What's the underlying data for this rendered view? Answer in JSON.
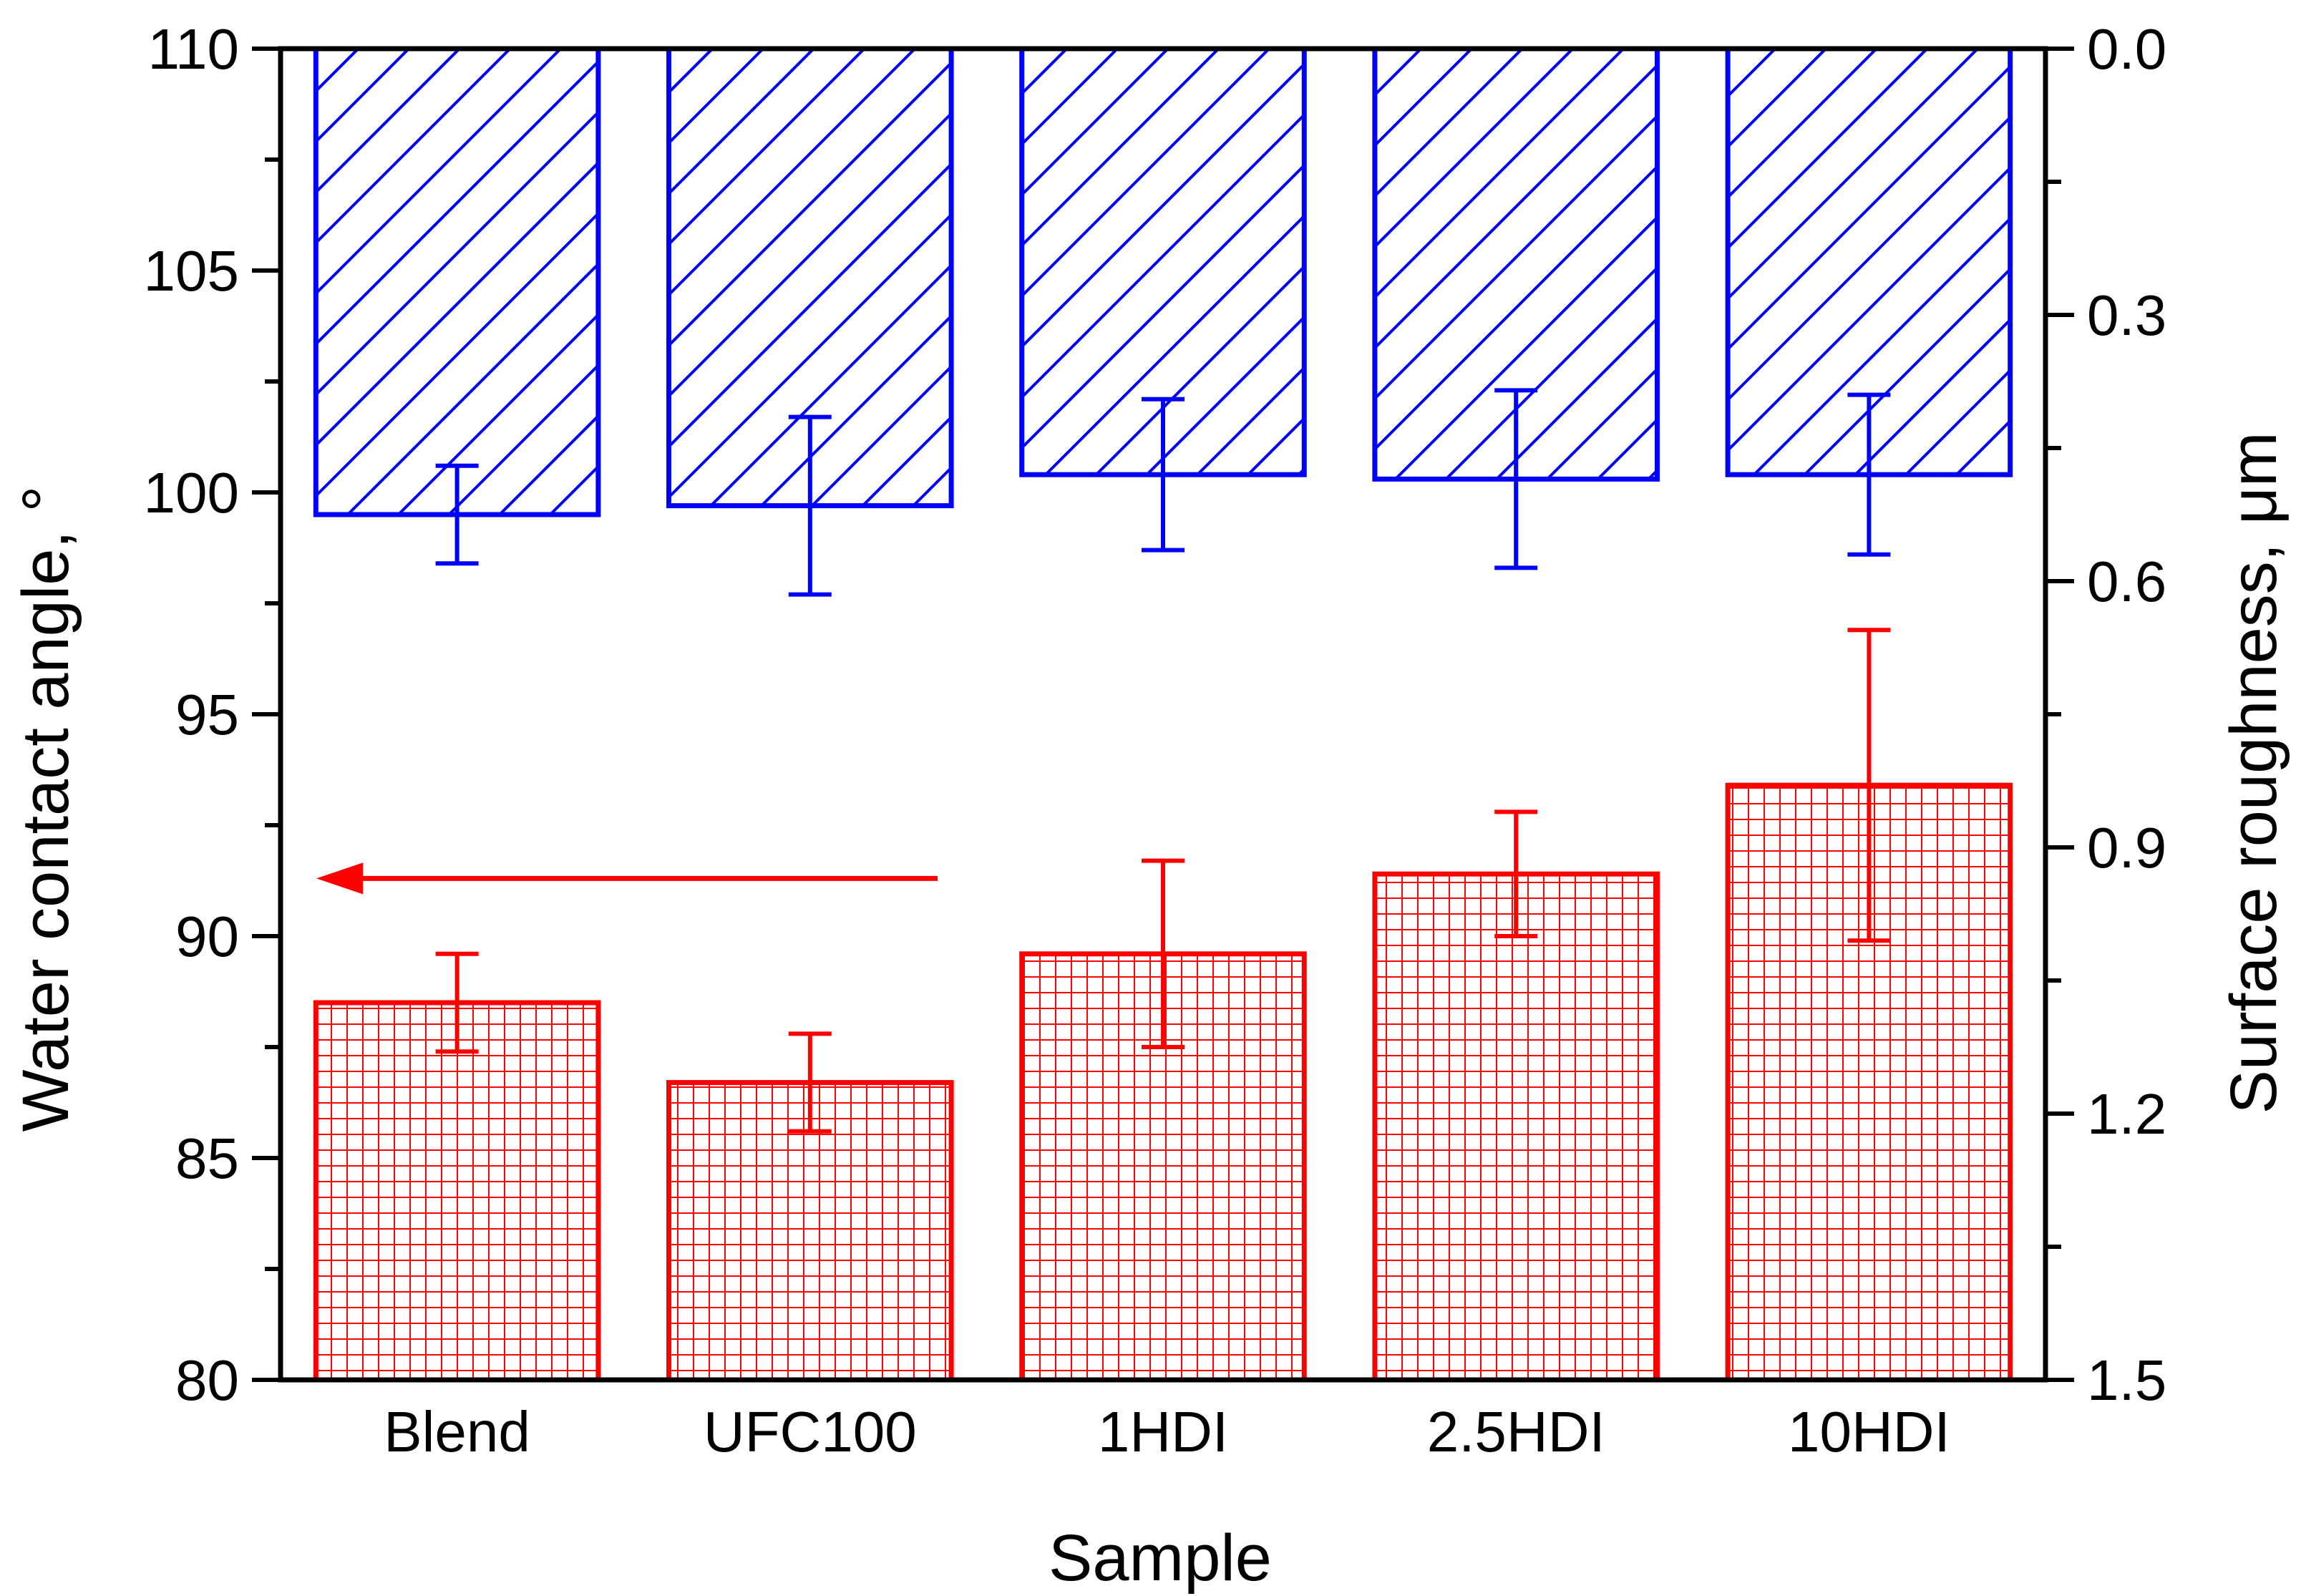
{
  "chart_data": {
    "type": "bar",
    "categories": [
      "Blend",
      "UFC100",
      "1HDI",
      "2.5HDI",
      "10HDI"
    ],
    "xlabel": "Sample",
    "left_axis": {
      "label": "Water contact angle, °",
      "ylim": [
        80,
        110
      ],
      "ticks": [
        "80",
        "85",
        "90",
        "95",
        "100",
        "105",
        "110"
      ],
      "tick_values": [
        80,
        85,
        90,
        95,
        100,
        105,
        110
      ]
    },
    "right_axis": {
      "label": "Surface roughness, μm",
      "ylim": [
        0.0,
        1.5
      ],
      "inverted": true,
      "ticks": [
        "0.0",
        "0.3",
        "0.6",
        "0.9",
        "1.2",
        "1.5"
      ],
      "tick_values": [
        0.0,
        0.3,
        0.6,
        0.9,
        1.2,
        1.5
      ]
    },
    "series": [
      {
        "name": "Water contact angle",
        "axis": "left",
        "color": "#ff0000",
        "pattern": "grid",
        "values": [
          88.5,
          86.7,
          89.6,
          91.4,
          93.4
        ],
        "error": [
          1.1,
          1.1,
          2.1,
          1.4,
          3.5
        ]
      },
      {
        "name": "Surface roughness",
        "axis": "right",
        "color": "#0000ff",
        "pattern": "diagonal",
        "values": [
          0.525,
          0.515,
          0.48,
          0.485,
          0.48
        ],
        "error": [
          0.055,
          0.1,
          0.085,
          0.1,
          0.09
        ]
      }
    ],
    "annotations": [
      {
        "type": "arrow",
        "direction": "left",
        "color": "#ff0000",
        "axis_y": 91.3,
        "meaning": "red bars refer to left axis"
      }
    ]
  }
}
